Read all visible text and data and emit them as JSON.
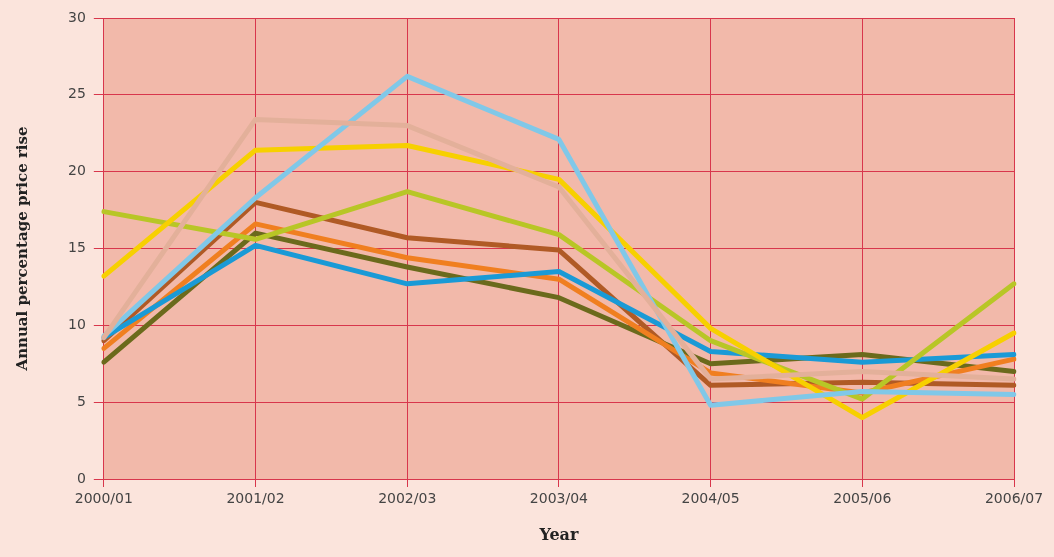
{
  "chart_data": {
    "type": "line",
    "xlabel": "Year",
    "ylabel": "Annual percentage price rise",
    "categories": [
      "2000/01",
      "2001/02",
      "2002/03",
      "2003/04",
      "2004/05",
      "2005/06",
      "2006/07"
    ],
    "series": [
      {
        "color": "#e3b09a",
        "values": [
          9.2,
          23.4,
          23.0,
          19.0,
          6.5,
          7.0,
          6.5
        ]
      },
      {
        "color": "#80c8e8",
        "values": [
          9.3,
          18.3,
          26.2,
          22.1,
          4.8,
          5.7,
          5.5
        ]
      },
      {
        "color": "#f7d000",
        "values": [
          13.2,
          21.4,
          21.7,
          19.5,
          9.8,
          4.0,
          9.5
        ]
      },
      {
        "color": "#b8c626",
        "values": [
          17.4,
          15.6,
          18.7,
          15.9,
          9.0,
          5.2,
          12.7
        ]
      },
      {
        "color": "#1a9ad6",
        "values": [
          9.2,
          15.2,
          12.7,
          13.5,
          8.3,
          7.6,
          8.1
        ]
      },
      {
        "color": "#f07f20",
        "values": [
          8.5,
          16.6,
          14.4,
          13.0,
          6.9,
          5.6,
          7.8
        ]
      },
      {
        "color": "#6b6a1c",
        "values": [
          7.6,
          16.0,
          13.8,
          11.8,
          7.5,
          8.1,
          7.0
        ]
      },
      {
        "color": "#b05a25",
        "values": [
          9.0,
          18.0,
          15.7,
          14.9,
          6.1,
          6.3,
          6.1
        ]
      }
    ],
    "ylim": [
      0,
      30
    ],
    "yticks": [
      0,
      5,
      10,
      15,
      20,
      25,
      30
    ],
    "grid": true,
    "legend": false,
    "marker": "none",
    "line_style": "solid"
  }
}
